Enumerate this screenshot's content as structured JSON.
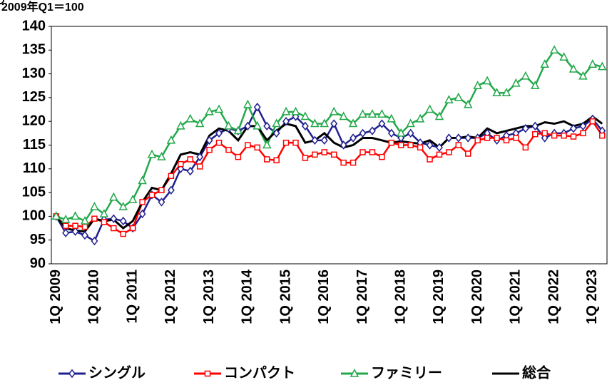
{
  "chart_data": {
    "type": "line",
    "subtitle": "2009年Q1＝100",
    "categories": [
      "1Q 2009",
      null,
      null,
      null,
      "1Q 2010",
      null,
      null,
      null,
      "1Q 2011",
      null,
      null,
      null,
      "1Q 2012",
      null,
      null,
      null,
      "1Q 2013",
      null,
      null,
      null,
      "1Q 2014",
      null,
      null,
      null,
      "1Q 2015",
      null,
      null,
      null,
      "1Q 2016",
      null,
      null,
      null,
      "1Q 2017",
      null,
      null,
      null,
      "1Q 2018",
      null,
      null,
      null,
      "1Q 2019",
      null,
      null,
      null,
      "1Q 2020",
      null,
      null,
      null,
      "1Q 2021",
      null,
      null,
      null,
      "1Q 2022",
      null,
      null,
      null,
      "1Q 2023",
      null
    ],
    "series": [
      {
        "name": "シングル",
        "color": "#1f1f8f",
        "marker": "diamond",
        "values": [
          100,
          96.5,
          96.8,
          96,
          94.8,
          99.3,
          99.5,
          99,
          97.5,
          100.5,
          104.5,
          103,
          105.5,
          110,
          109.5,
          112.5,
          116,
          117.5,
          118.5,
          118,
          119,
          123,
          119,
          117.5,
          120,
          121,
          119,
          116,
          116,
          119.5,
          115,
          116.5,
          117.5,
          118,
          119.5,
          117.5,
          116.5,
          117.5,
          115.5,
          115,
          114.5,
          116.5,
          116.5,
          116.5,
          116.5,
          117.5,
          116,
          117,
          117.5,
          118.5,
          119,
          116.5,
          117.5,
          117.5,
          118.5,
          119,
          120.5,
          118
        ]
      },
      {
        "name": "コンパクト",
        "color": "#ff0000",
        "marker": "square",
        "values": [
          100,
          98,
          98,
          97.8,
          99.5,
          98.8,
          97.5,
          96.3,
          97.5,
          103,
          104.5,
          105.5,
          108.5,
          111,
          112,
          110.5,
          114,
          115.5,
          114,
          112.5,
          115,
          114.5,
          112,
          111.8,
          115.5,
          115.5,
          112.3,
          113,
          113.5,
          113,
          111.3,
          111.3,
          113.5,
          113.5,
          112.5,
          115.5,
          115,
          115,
          114.5,
          112,
          113,
          113.5,
          115,
          113.2,
          116,
          116.5,
          116.5,
          116,
          116.5,
          114.5,
          117.3,
          117.5,
          117,
          117,
          116.8,
          117.5,
          120,
          117
        ]
      },
      {
        "name": "ファミリー",
        "color": "#22a84a",
        "marker": "triangle",
        "values": [
          100,
          99.3,
          100,
          99,
          102,
          100.5,
          104,
          102,
          103.5,
          107.5,
          113,
          112.5,
          116,
          119,
          120.5,
          119.5,
          122,
          122.5,
          119,
          118,
          123.5,
          119,
          115,
          119.5,
          122,
          122,
          121,
          119.5,
          119.5,
          122,
          121,
          119.5,
          121.5,
          121.5,
          121.5,
          120.5,
          117.5,
          119.5,
          120.5,
          122.5,
          121,
          124.5,
          125,
          123.5,
          127.5,
          128.5,
          126,
          126,
          128,
          129.5,
          127.5,
          132,
          135,
          133.5,
          131,
          129.5,
          132,
          131.5
        ]
      },
      {
        "name": "総合",
        "color": "#000000",
        "marker": "circle",
        "values": [
          100,
          97.5,
          97,
          96.8,
          99.5,
          99,
          99.3,
          97.5,
          99,
          103,
          106,
          105.5,
          109,
          113,
          113.5,
          113,
          117,
          118.5,
          118,
          116,
          119,
          119,
          116,
          118,
          119.5,
          119,
          115.5,
          116,
          117.5,
          115.5,
          114.5,
          115,
          116.5,
          116.5,
          116,
          115.5,
          115.8,
          115.5,
          115.3,
          116,
          114.5,
          116.5,
          116.5,
          116.8,
          116.5,
          118.5,
          117.5,
          118,
          118.5,
          119,
          119,
          119.8,
          119.5,
          120,
          119,
          119.5,
          121,
          119.5
        ]
      }
    ],
    "ylim": [
      90,
      140
    ],
    "yticks": [
      90,
      95,
      100,
      105,
      110,
      115,
      120,
      125,
      130,
      135,
      140
    ],
    "grid": false,
    "legend": "bottom"
  }
}
